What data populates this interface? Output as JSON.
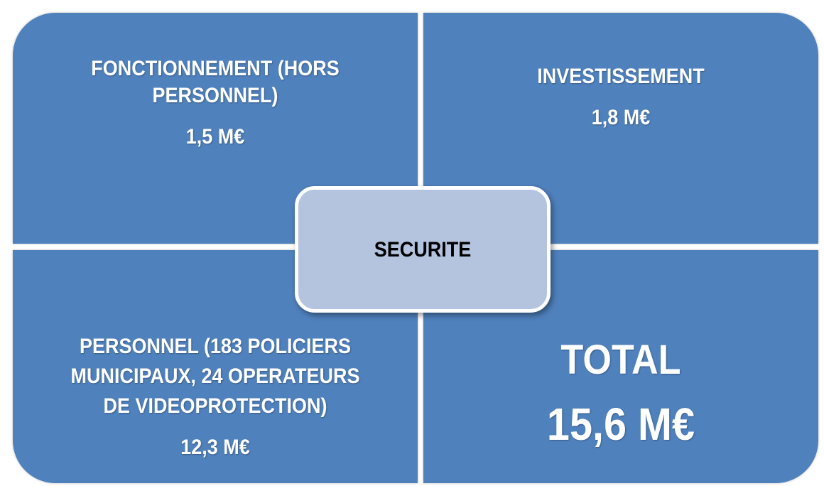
{
  "center": {
    "label": "SECURITE"
  },
  "quadrants": [
    {
      "title_lines": [
        "FONCTIONNEMENT (HORS",
        "PERSONNEL)"
      ],
      "value": "1,5 M€"
    },
    {
      "title_lines": [
        "INVESTISSEMENT"
      ],
      "value": "1,8 M€"
    },
    {
      "title_lines": [
        "PERSONNEL (183 POLICIERS",
        "MUNICIPAUX, 24 OPERATEURS",
        "DE VIDEOPROTECTION)"
      ],
      "value": "12,3 M€"
    },
    {
      "title_lines": [
        "TOTAL"
      ],
      "value": "15,6 M€"
    }
  ]
}
